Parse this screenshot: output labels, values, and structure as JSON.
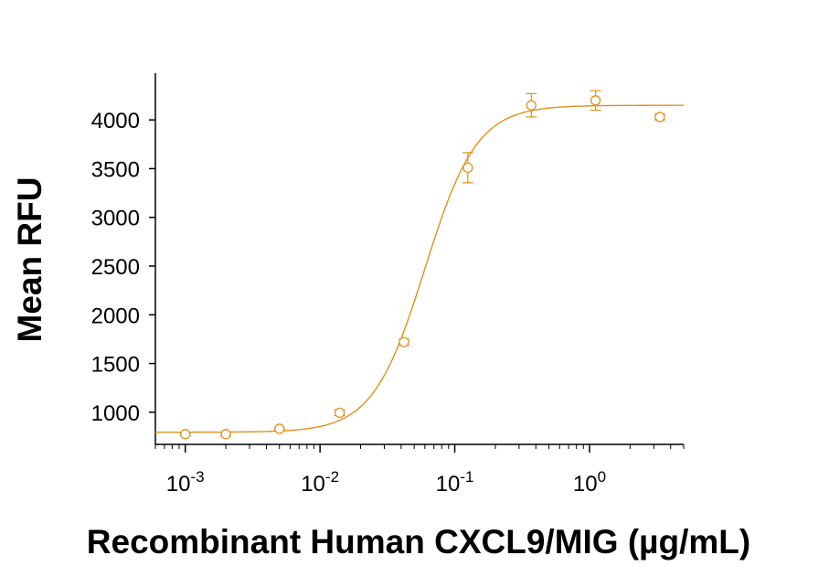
{
  "chart_data": {
    "type": "scatter",
    "xlabel": "Recombinant Human CXCL9/MIG (µg/mL)",
    "ylabel": "Mean RFU",
    "x_scale": "log",
    "xlim": [
      0.0006,
      5
    ],
    "ylim": [
      670,
      4480
    ],
    "x_tick_labels": [
      {
        "value": 0.001,
        "base": "10",
        "exp": "-3"
      },
      {
        "value": 0.01,
        "base": "10",
        "exp": "-2"
      },
      {
        "value": 0.1,
        "base": "10",
        "exp": "-1"
      },
      {
        "value": 1,
        "base": "10",
        "exp": "0"
      }
    ],
    "y_ticks": [
      1000,
      1500,
      2000,
      2500,
      3000,
      3500,
      4000
    ],
    "y_tick_labels": [
      "1000",
      "1500",
      "2000",
      "2500",
      "3000",
      "3500",
      "4000"
    ],
    "grid": false,
    "legend": "none",
    "color": "#E0921E",
    "series": [
      {
        "x": [
          0.001,
          0.002,
          0.005,
          0.014,
          0.042,
          0.125,
          0.37,
          1.11,
          3.33
        ],
        "y": [
          775,
          775,
          830,
          995,
          1720,
          3510,
          4150,
          4200,
          4030
        ],
        "err": [
          15,
          20,
          10,
          30,
          30,
          155,
          120,
          100,
          30
        ]
      }
    ],
    "fit": {
      "model": "4PL",
      "bottom": 795,
      "top": 4150,
      "ec50": 0.06,
      "hill": 2.25
    }
  }
}
